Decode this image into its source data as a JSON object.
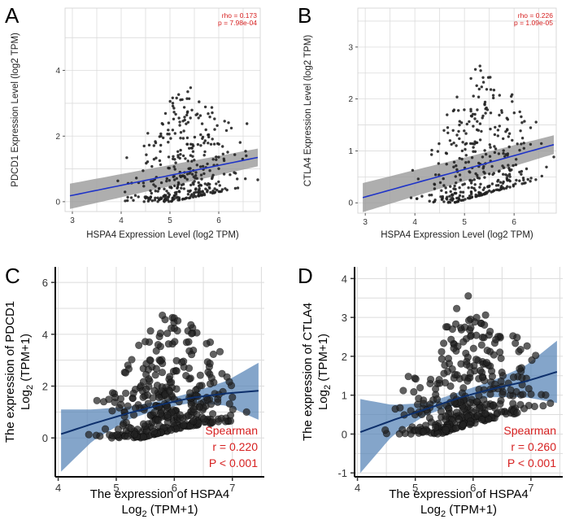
{
  "figure": {
    "panels": [
      "A",
      "B",
      "C",
      "D"
    ]
  },
  "colors": {
    "fit_line_top": "#1f34c8",
    "ci_band_top": "#9a9a9a",
    "fit_line_bottom": "#0d2f6b",
    "ci_band_bottom": "#5b87b8",
    "stat_text": "#d62020",
    "points": "#222222",
    "grid": "#dcdcdc"
  },
  "chart_data": [
    {
      "panel": "A",
      "type": "scatter",
      "title": "",
      "xlabel": "HSPA4 Expression Level (log2 TPM)",
      "ylabel": "PDCD1 Expression Level (log2 TPM)",
      "xlim": [
        2.85,
        6.85
      ],
      "ylim": [
        -0.3,
        5.9
      ],
      "xticks": [
        3,
        4,
        5,
        6
      ],
      "yticks": [
        0,
        2,
        4
      ],
      "stats": [
        "rho = 0.173",
        "p = 7.98e-04"
      ],
      "fit": {
        "x": [
          2.95,
          6.8
        ],
        "y": [
          0.18,
          1.35
        ]
      },
      "ci": {
        "upper": [
          0.55,
          1.62
        ],
        "lower": [
          -0.22,
          1.08
        ]
      },
      "point_seed": 11,
      "n_points": 380,
      "spread": 0.9,
      "x_center": 5.3,
      "x_sd": 0.55,
      "marker_radius": 1.7
    },
    {
      "panel": "B",
      "type": "scatter",
      "title": "",
      "xlabel": "HSPA4 Expression Level (log2 TPM)",
      "ylabel": "CTLA4 Expression Level (log2 TPM)",
      "xlim": [
        2.85,
        6.85
      ],
      "ylim": [
        -0.2,
        3.75
      ],
      "xticks": [
        3,
        4,
        5,
        6
      ],
      "yticks": [
        0,
        1,
        2,
        3
      ],
      "stats": [
        "rho = 0.226",
        "p = 1.09e-05"
      ],
      "fit": {
        "x": [
          2.95,
          6.8
        ],
        "y": [
          0.1,
          1.12
        ]
      },
      "ci": {
        "upper": [
          0.38,
          1.3
        ],
        "lower": [
          -0.18,
          0.94
        ]
      },
      "point_seed": 23,
      "n_points": 380,
      "spread": 0.65,
      "x_center": 5.3,
      "x_sd": 0.55,
      "marker_radius": 1.7
    },
    {
      "panel": "C",
      "type": "scatter",
      "title": "",
      "xlabel": [
        "The expression of HSPA4",
        "Log",
        "2",
        " (TPM+1)"
      ],
      "ylabel": [
        "The expression of PDCD1",
        "Log",
        "2",
        " (TPM+1)"
      ],
      "xlim": [
        3.95,
        7.55
      ],
      "ylim": [
        -1.5,
        6.6
      ],
      "xticks": [
        4,
        5,
        6,
        7
      ],
      "yticks": [
        0,
        2,
        4,
        6
      ],
      "stats": [
        "Spearman",
        "r = 0.220",
        "P < 0.001"
      ],
      "fit": {
        "x": [
          4.05,
          4.6,
          5.2,
          5.8,
          6.3,
          6.9,
          7.45
        ],
        "y": [
          0.15,
          0.55,
          0.95,
          1.3,
          1.55,
          1.72,
          1.82
        ]
      },
      "ci": {
        "upper": [
          1.1,
          1.1,
          1.2,
          1.45,
          1.75,
          2.2,
          2.9
        ],
        "lower": [
          -1.3,
          -0.1,
          0.7,
          1.15,
          1.35,
          1.25,
          0.7
        ]
      },
      "point_seed": 37,
      "n_points": 360,
      "spread": 1.2,
      "x_center": 5.9,
      "x_sd": 0.55,
      "marker_radius": 4.3
    },
    {
      "panel": "D",
      "type": "scatter",
      "title": "",
      "xlabel": [
        "The expression of HSPA4",
        "Log",
        "2",
        " (TPM+1)"
      ],
      "ylabel": [
        "The expression of CTLA4",
        "Log",
        "2",
        " (TPM+1)"
      ],
      "xlim": [
        3.95,
        7.55
      ],
      "ylim": [
        -1.1,
        4.3
      ],
      "xticks": [
        4,
        5,
        6,
        7
      ],
      "yticks": [
        -1,
        0,
        1,
        2,
        3,
        4
      ],
      "stats": [
        "Spearman",
        "r = 0.260",
        "P < 0.001"
      ],
      "fit": {
        "x": [
          4.05,
          4.6,
          5.2,
          5.8,
          6.3,
          6.9,
          7.45
        ],
        "y": [
          0.05,
          0.35,
          0.65,
          0.95,
          1.15,
          1.35,
          1.6
        ]
      },
      "ci": {
        "upper": [
          0.9,
          0.75,
          0.8,
          1.1,
          1.35,
          1.75,
          2.4
        ],
        "lower": [
          -1.0,
          -0.05,
          0.5,
          0.8,
          0.95,
          0.95,
          0.8
        ]
      },
      "point_seed": 53,
      "n_points": 360,
      "spread": 0.85,
      "x_center": 5.9,
      "x_sd": 0.55,
      "marker_radius": 4.3
    }
  ]
}
